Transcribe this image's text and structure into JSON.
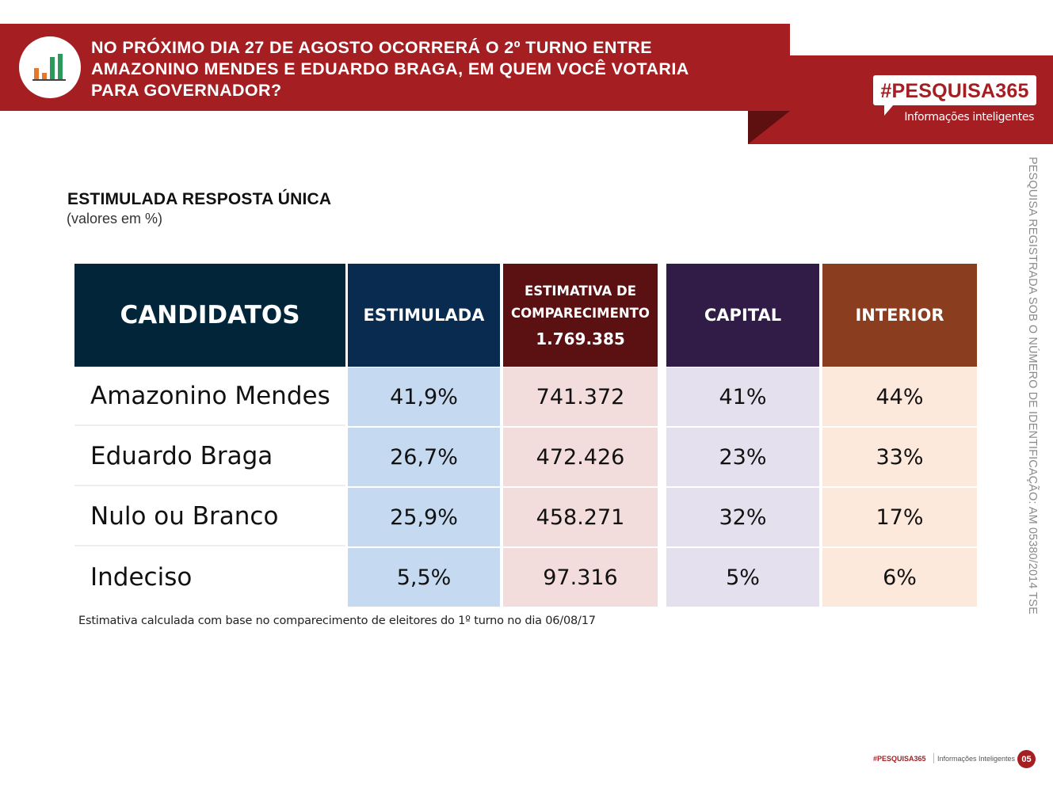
{
  "header": {
    "question": "NO PRÓXIMO DIA 27 DE AGOSTO OCORRERÁ O 2º TURNO ENTRE AMAZONINO MENDES E EDUARDO BRAGA, EM QUEM VOCÊ VOTARIA PARA GOVERNADOR?",
    "logo_icon": "bar-chart-icon",
    "brand": "#PESQUISA365",
    "brand_tagline": "Informações inteligentes",
    "accent_color": "#a41e22"
  },
  "section": {
    "title": "ESTIMULADA RESPOSTA ÚNICA",
    "subtitle": "(valores em %)"
  },
  "table": {
    "headers": {
      "candidates": "CANDIDATOS",
      "stimulated": "ESTIMULADA",
      "turnout_line1": "ESTIMATIVA DE",
      "turnout_line2": "COMPARECIMENTO",
      "turnout_total": "1.769.385",
      "capital": "CAPITAL",
      "interior": "INTERIOR"
    },
    "rows": [
      {
        "name": "Amazonino Mendes",
        "stimulated": "41,9%",
        "turnout": "741.372",
        "capital": "41%",
        "interior": "44%"
      },
      {
        "name": "Eduardo Braga",
        "stimulated": "26,7%",
        "turnout": "472.426",
        "capital": "23%",
        "interior": "33%"
      },
      {
        "name": "Nulo ou Branco",
        "stimulated": "25,9%",
        "turnout": "458.271",
        "capital": "32%",
        "interior": "17%"
      },
      {
        "name": "Indeciso",
        "stimulated": "5,5%",
        "turnout": "97.316",
        "capital": "5%",
        "interior": "6%"
      }
    ]
  },
  "footnote": "Estimativa calculada com base no comparecimento de eleitores do 1º turno no dia 06/08/17",
  "side_note": "PESQUISA REGISTRADA SOB  O NÚMERO  DE IDENTIFICAÇÃO: AM 05380/2014 TSE",
  "footer": {
    "brand": "#PESQUISA365",
    "tagline": "Informações Inteligentes",
    "page_number": "05"
  }
}
